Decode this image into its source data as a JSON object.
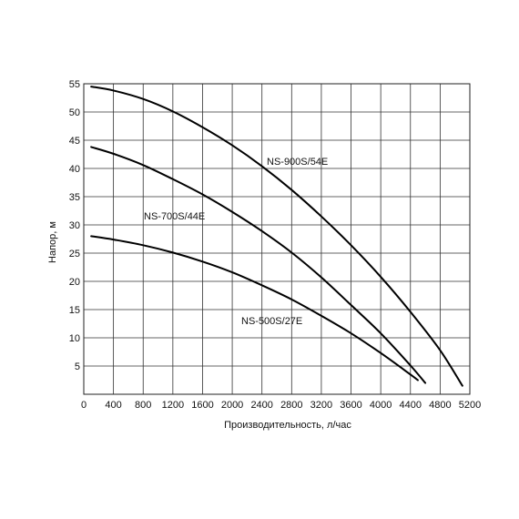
{
  "chart_data": {
    "type": "line",
    "title": "",
    "xlabel": "Производительность, л/час",
    "ylabel": "Напор, м",
    "xlim": [
      0,
      5200
    ],
    "ylim": [
      0,
      55
    ],
    "x_ticks": [
      "0",
      "400",
      "800",
      "1200",
      "1600",
      "2000",
      "2400",
      "2800",
      "3200",
      "3600",
      "4000",
      "4400",
      "4800",
      "5200"
    ],
    "y_ticks": [
      "5",
      "10",
      "15",
      "20",
      "25",
      "30",
      "35",
      "40",
      "45",
      "50",
      "55"
    ],
    "grid": true,
    "legend": "none",
    "line_color": "#000000",
    "series": [
      {
        "name": "NS-900S/54E",
        "x": [
          100,
          400,
          800,
          1200,
          1600,
          2000,
          2400,
          2800,
          3200,
          3600,
          4000,
          4400,
          4800,
          5100
        ],
        "y": [
          54.5,
          53.8,
          52.3,
          50.1,
          47.3,
          44.1,
          40.4,
          36.2,
          31.5,
          26.4,
          20.8,
          14.6,
          7.8,
          1.5
        ]
      },
      {
        "name": "NS-700S/44E",
        "x": [
          100,
          400,
          800,
          1200,
          1600,
          2000,
          2400,
          2800,
          3200,
          3600,
          4000,
          4400,
          4600
        ],
        "y": [
          43.8,
          42.6,
          40.6,
          38.1,
          35.4,
          32.3,
          28.9,
          25.1,
          20.7,
          15.8,
          10.8,
          5.1,
          2.0
        ]
      },
      {
        "name": "NS-500S/27E",
        "x": [
          100,
          400,
          800,
          1200,
          1600,
          2000,
          2400,
          2800,
          3200,
          3600,
          4000,
          4400,
          4500
        ],
        "y": [
          28.0,
          27.4,
          26.4,
          25.1,
          23.5,
          21.6,
          19.3,
          16.8,
          13.9,
          10.8,
          7.3,
          3.5,
          2.5
        ]
      }
    ]
  }
}
